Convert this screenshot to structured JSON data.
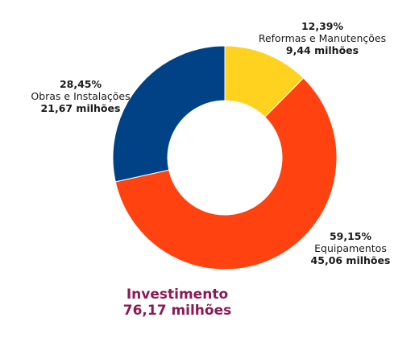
{
  "chart_data": {
    "type": "pie",
    "variant": "donut",
    "title": "",
    "slices": [
      {
        "name": "Reformas e Manutenções",
        "percent": 12.39,
        "percent_label": "12,39%",
        "value": 9.44,
        "value_label": "9,44 milhões",
        "color": "#FFD21F"
      },
      {
        "name": "Equipamentos",
        "percent": 59.15,
        "percent_label": "59,15%",
        "value": 45.06,
        "value_label": "45,06 milhões",
        "color": "#FF4210"
      },
      {
        "name": "Obras e Instalações",
        "percent": 28.45,
        "percent_label": "28,45%",
        "value": 21.67,
        "value_label": "21,67 milhões",
        "color": "#004285"
      }
    ],
    "total": {
      "label": "Investimento",
      "value": 76.17,
      "value_label": "76,17 milhões",
      "color": "#8B1A52"
    },
    "legend": "none"
  }
}
